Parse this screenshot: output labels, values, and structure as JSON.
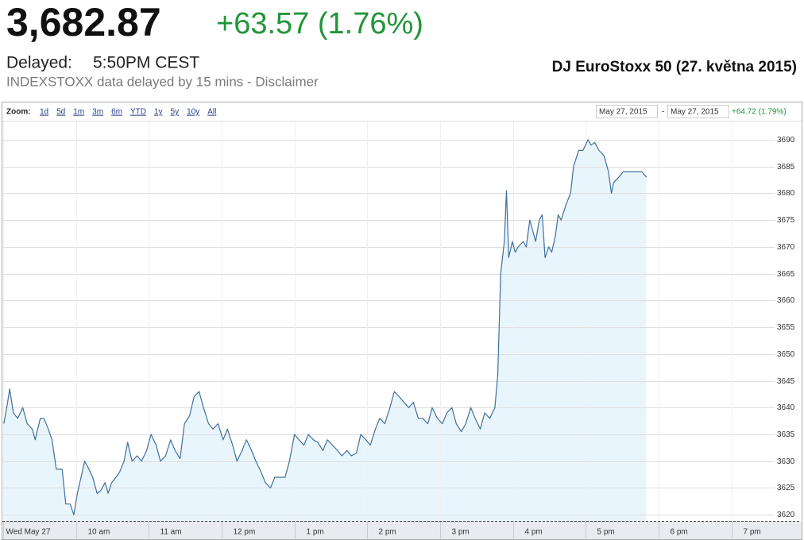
{
  "header": {
    "price": "3,682.87",
    "change": "+63.57 (1.76%)",
    "delayed_label": "Delayed:",
    "delayed_time": "5:50PM CEST",
    "disclaimer": "INDEXSTOXX data delayed by 15 mins - Disclaimer"
  },
  "zoom": {
    "label": "Zoom:",
    "options": [
      "1d",
      "5d",
      "1m",
      "3m",
      "6m",
      "YTD",
      "1y",
      "5y",
      "10y",
      "All"
    ]
  },
  "range": {
    "start": "May 27, 2015",
    "separator": "-",
    "end": "May 27, 2015",
    "change": "+64.72 (1.79%)"
  },
  "chart_data": {
    "type": "line",
    "title": "DJ EuroStoxx 50 (27. května 2015)",
    "color": "#3f6f9c",
    "fill_color": "#e9f5fc",
    "grid": true,
    "x": [
      9.01,
      9.05,
      9.09,
      9.14,
      9.2,
      9.27,
      9.33,
      9.4,
      9.44,
      9.51,
      9.56,
      9.62,
      9.67,
      9.73,
      9.81,
      9.86,
      9.92,
      9.97,
      10.02,
      10.07,
      10.12,
      10.16,
      10.23,
      10.29,
      10.34,
      10.4,
      10.44,
      10.49,
      10.55,
      10.6,
      10.66,
      10.71,
      10.77,
      10.84,
      10.9,
      10.97,
      11.03,
      11.1,
      11.16,
      11.23,
      11.3,
      11.36,
      11.43,
      11.49,
      11.56,
      11.62,
      11.69,
      11.75,
      11.82,
      11.88,
      11.95,
      12.02,
      12.08,
      12.15,
      12.21,
      12.28,
      12.34,
      12.41,
      12.47,
      12.54,
      12.6,
      12.67,
      12.73,
      12.8,
      12.87,
      12.93,
      13,
      13.06,
      13.13,
      13.19,
      13.26,
      13.32,
      13.39,
      13.45,
      13.52,
      13.59,
      13.65,
      13.72,
      13.78,
      13.85,
      13.91,
      13.98,
      14.04,
      14.11,
      14.17,
      14.24,
      14.31,
      14.37,
      14.44,
      14.5,
      14.57,
      14.63,
      14.7,
      14.76,
      14.83,
      14.89,
      14.96,
      15.03,
      15.09,
      15.16,
      15.22,
      15.29,
      15.35,
      15.42,
      15.48,
      15.55,
      15.61,
      15.68,
      15.75,
      15.79,
      15.83,
      15.88,
      15.91,
      15.94,
      15.99,
      16.03,
      16.07,
      16.14,
      16.18,
      16.23,
      16.27,
      16.31,
      16.36,
      16.4,
      16.44,
      16.49,
      16.53,
      16.58,
      16.62,
      16.66,
      16.73,
      16.79,
      16.83,
      16.9,
      16.96,
      17.03,
      17.07,
      17.12,
      17.18,
      17.25,
      17.31,
      17.35,
      17.38,
      17.45,
      17.51,
      17.58,
      17.69,
      17.77,
      17.83
    ],
    "values": [
      3637,
      3640,
      3643.5,
      3639,
      3638,
      3640,
      3637,
      3636,
      3634,
      3638,
      3638,
      3636,
      3634,
      3628.5,
      3628.5,
      3622,
      3622,
      3620,
      3624,
      3627,
      3630,
      3629,
      3627,
      3624,
      3624.5,
      3626,
      3624,
      3626,
      3627,
      3628,
      3630,
      3633.5,
      3630,
      3631,
      3630,
      3632,
      3635,
      3633,
      3630,
      3631,
      3634,
      3632,
      3630.5,
      3637,
      3638.5,
      3642,
      3643,
      3640,
      3637,
      3636,
      3637,
      3634,
      3636,
      3633,
      3630,
      3632,
      3634,
      3632,
      3630,
      3628,
      3626,
      3625,
      3627,
      3627,
      3627,
      3630,
      3635,
      3634,
      3633,
      3635,
      3634,
      3633.5,
      3632,
      3634,
      3633,
      3632,
      3631,
      3632,
      3631,
      3631.5,
      3635,
      3634,
      3633,
      3636,
      3638,
      3637,
      3640,
      3643,
      3642,
      3641,
      3640,
      3641,
      3638,
      3638,
      3637,
      3640,
      3638,
      3637,
      3639,
      3640,
      3637,
      3635.5,
      3637,
      3640,
      3638,
      3636,
      3639,
      3638,
      3640,
      3646,
      3665,
      3671,
      3680.5,
      3668,
      3671,
      3669,
      3670,
      3671,
      3670,
      3675,
      3673,
      3671,
      3675,
      3676,
      3668,
      3670,
      3669,
      3672,
      3676,
      3675,
      3678,
      3680,
      3685,
      3688,
      3688,
      3690,
      3689,
      3689.5,
      3688,
      3687,
      3684,
      3680,
      3682,
      3683,
      3684,
      3684,
      3684,
      3684,
      3683
    ],
    "xlim": [
      8.99,
      19.95
    ],
    "xticks": [
      {
        "value": 9,
        "label": "Wed May 27"
      },
      {
        "value": 10,
        "label": "10 am"
      },
      {
        "value": 11,
        "label": "11 am"
      },
      {
        "value": 12,
        "label": "12 pm"
      },
      {
        "value": 13,
        "label": "1 pm"
      },
      {
        "value": 14,
        "label": "2 pm"
      },
      {
        "value": 15,
        "label": "3 pm"
      },
      {
        "value": 16,
        "label": "4 pm"
      },
      {
        "value": 17,
        "label": "5 pm"
      },
      {
        "value": 18,
        "label": "6 pm"
      },
      {
        "value": 19,
        "label": "7 pm"
      }
    ],
    "ylim": [
      3618.7,
      3693.4
    ],
    "yticks": [
      3620,
      3625,
      3630,
      3635,
      3640,
      3645,
      3650,
      3655,
      3660,
      3665,
      3670,
      3675,
      3680,
      3685,
      3690
    ]
  }
}
